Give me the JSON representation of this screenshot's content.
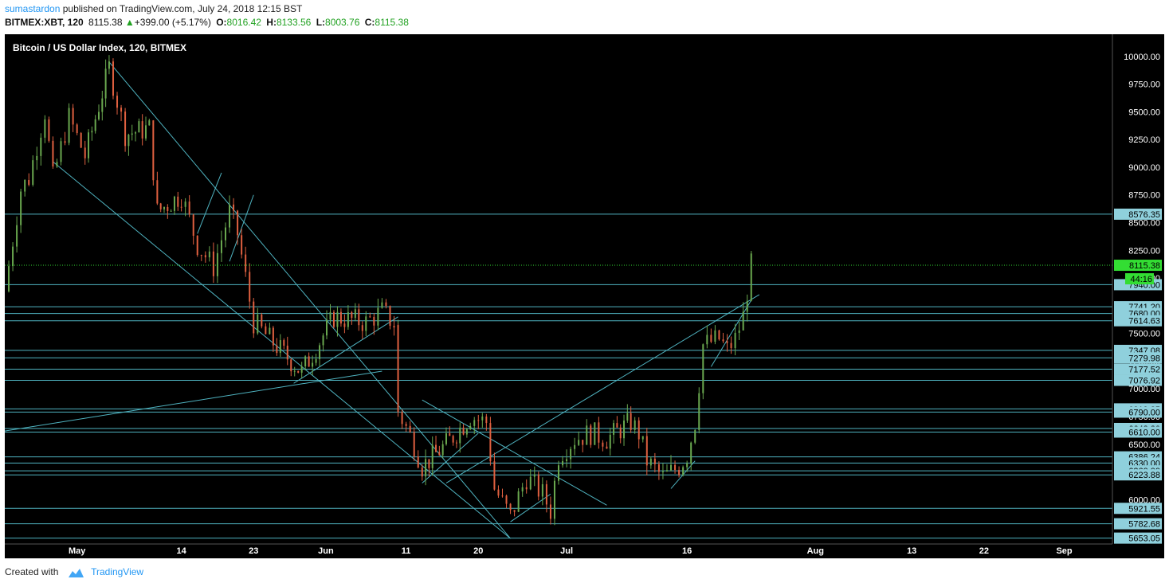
{
  "header": {
    "author": "sumastardon",
    "published_text": "published on TradingView.com, July 24, 2018 12:15 BST",
    "symbol": "BITMEX:XBT, 120",
    "last": "8115.38",
    "change": "+399.00 (+5.17%)",
    "open_label": "O:",
    "open": "8016.42",
    "high_label": "H:",
    "high": "8133.56",
    "low_label": "L:",
    "low": "8003.76",
    "close_label": "C:",
    "close": "8115.38",
    "up_icon": "triangle-up-icon"
  },
  "footer": {
    "created_with": "Created with",
    "brand": "TradingView",
    "logo_icon": "tradingview-cloud-icon"
  },
  "colors": {
    "background": "#000000",
    "candle_up": "#6aa84f",
    "candle_down": "#e06040",
    "lines": "#4fb3c0",
    "last_price": "#33dd33",
    "axis_label_bg": "#8fd0dc",
    "axis_text": "#ffffff"
  },
  "chart_data": {
    "type": "candlestick",
    "title": "Bitcoin / US Dollar Index, 120, BITMEX",
    "ylim": [
      5600,
      10200
    ],
    "y_ticks": [
      6000,
      6250,
      6500,
      6750,
      7000,
      7250,
      7500,
      7750,
      8000,
      8250,
      8500,
      8750,
      9000,
      9250,
      9500,
      9750,
      10000
    ],
    "y_tick_labels": [
      "6000.00",
      "6250.00",
      "6500.00",
      "6750.00",
      "7000.00",
      "7250.00",
      "7500.00",
      "7750.00",
      "8000.00",
      "8250.00",
      "8500.00",
      "8750.00",
      "9000.00",
      "9250.00",
      "9500.00",
      "9750.00",
      "10000.00"
    ],
    "x_ticks": [
      "May",
      "14",
      "23",
      "Jun",
      "11",
      "20",
      "Jul",
      "16",
      "Aug",
      "13",
      "22",
      "Sep"
    ],
    "x_tick_dates": [
      "2018-05-01",
      "2018-05-14",
      "2018-05-23",
      "2018-06-01",
      "2018-06-11",
      "2018-06-20",
      "2018-07-01",
      "2018-07-16",
      "2018-08-01",
      "2018-08-13",
      "2018-08-22",
      "2018-09-01"
    ],
    "x_range": [
      "2018-04-22",
      "2018-09-07"
    ],
    "last_price": 8115.38,
    "last_price_label": "8115.38",
    "countdown_label": "44:16",
    "horizontal_levels": [
      {
        "price": 8576.35,
        "label": "8576.35"
      },
      {
        "price": 7940,
        "label": "7940.00"
      },
      {
        "price": 7741.2,
        "label": "7741.20"
      },
      {
        "price": 7680,
        "label": "7680.00"
      },
      {
        "price": 7614.63,
        "label": "7614.63"
      },
      {
        "price": 7347.08,
        "label": "7347.08"
      },
      {
        "price": 7279.98,
        "label": "7279.98"
      },
      {
        "price": 7177.52,
        "label": "7177.52"
      },
      {
        "price": 7076.92,
        "label": "7076.92"
      },
      {
        "price": 6819.25,
        "label": "6819.25"
      },
      {
        "price": 6790,
        "label": "6790.00"
      },
      {
        "price": 6642.3,
        "label": "6642.30"
      },
      {
        "price": 6610,
        "label": "6610.00"
      },
      {
        "price": 6386.24,
        "label": "6386.24"
      },
      {
        "price": 6330,
        "label": "6330.00"
      },
      {
        "price": 6260,
        "label": "6260.00"
      },
      {
        "price": 6223.88,
        "label": "6223.88"
      },
      {
        "price": 5921.55,
        "label": "5921.55"
      },
      {
        "price": 5782.68,
        "label": "5782.68"
      },
      {
        "price": 5653.05,
        "label": "5653.05"
      }
    ],
    "price_path": [
      [
        "2018-04-22",
        7880
      ],
      [
        "2018-04-24",
        8800
      ],
      [
        "2018-04-25",
        8900
      ],
      [
        "2018-04-27",
        9500
      ],
      [
        "2018-04-28",
        8900
      ],
      [
        "2018-04-30",
        9450
      ],
      [
        "2018-05-02",
        9100
      ],
      [
        "2018-05-05",
        9900
      ],
      [
        "2018-05-07",
        9300
      ],
      [
        "2018-05-10",
        9350
      ],
      [
        "2018-05-11",
        8600
      ],
      [
        "2018-05-14",
        8750
      ],
      [
        "2018-05-16",
        8300
      ],
      [
        "2018-05-18",
        8100
      ],
      [
        "2018-05-20",
        8600
      ],
      [
        "2018-05-21",
        8400
      ],
      [
        "2018-05-22",
        8000
      ],
      [
        "2018-05-23",
        7600
      ],
      [
        "2018-05-25",
        7450
      ],
      [
        "2018-05-29",
        7150
      ],
      [
        "2018-06-02",
        7650
      ],
      [
        "2018-06-06",
        7600
      ],
      [
        "2018-06-08",
        7700
      ],
      [
        "2018-06-10",
        7550
      ],
      [
        "2018-06-10",
        6800
      ],
      [
        "2018-06-12",
        6500
      ],
      [
        "2018-06-13",
        6300
      ],
      [
        "2018-06-16",
        6500
      ],
      [
        "2018-06-19",
        6750
      ],
      [
        "2018-06-21",
        6700
      ],
      [
        "2018-06-22",
        6100
      ],
      [
        "2018-06-24",
        5850
      ],
      [
        "2018-06-26",
        6200
      ],
      [
        "2018-06-28",
        6050
      ],
      [
        "2018-06-29",
        5900
      ],
      [
        "2018-06-30",
        6400
      ],
      [
        "2018-07-02",
        6550
      ],
      [
        "2018-07-04",
        6600
      ],
      [
        "2018-07-06",
        6550
      ],
      [
        "2018-07-09",
        6700
      ],
      [
        "2018-07-10",
        6600
      ],
      [
        "2018-07-11",
        6350
      ],
      [
        "2018-07-13",
        6200
      ],
      [
        "2018-07-15",
        6300
      ],
      [
        "2018-07-16",
        6400
      ],
      [
        "2018-07-17",
        6700
      ],
      [
        "2018-07-18",
        7400
      ],
      [
        "2018-07-20",
        7450
      ],
      [
        "2018-07-21",
        7350
      ],
      [
        "2018-07-22",
        7450
      ],
      [
        "2018-07-23",
        7650
      ],
      [
        "2018-07-24",
        8115
      ]
    ],
    "trend_lines": [
      {
        "from": [
          "2018-05-05",
          9950
        ],
        "to": [
          "2018-06-24",
          5650
        ]
      },
      {
        "from": [
          "2018-04-28",
          9050
        ],
        "to": [
          "2018-06-24",
          5650
        ]
      },
      {
        "from": [
          "2018-04-22",
          6620
        ],
        "to": [
          "2018-06-08",
          7160
        ]
      },
      {
        "from": [
          "2018-05-28",
          7050
        ],
        "to": [
          "2018-06-10",
          7650
        ]
      },
      {
        "from": [
          "2018-06-13",
          6900
        ],
        "to": [
          "2018-07-06",
          5950
        ]
      },
      {
        "from": [
          "2018-06-16",
          6150
        ],
        "to": [
          "2018-07-25",
          7850
        ]
      },
      {
        "from": [
          "2018-05-16",
          8400
        ],
        "to": [
          "2018-05-19",
          8950
        ]
      },
      {
        "from": [
          "2018-05-20",
          8150
        ],
        "to": [
          "2018-05-23",
          8750
        ]
      },
      {
        "from": [
          "2018-06-13",
          6150
        ],
        "to": [
          "2018-06-20",
          6600
        ]
      },
      {
        "from": [
          "2018-06-24",
          5800
        ],
        "to": [
          "2018-06-29",
          6050
        ]
      },
      {
        "from": [
          "2018-07-14",
          6100
        ],
        "to": [
          "2018-07-17",
          6350
        ]
      },
      {
        "from": [
          "2018-07-19",
          7200
        ],
        "to": [
          "2018-07-24",
          7800
        ]
      }
    ]
  }
}
